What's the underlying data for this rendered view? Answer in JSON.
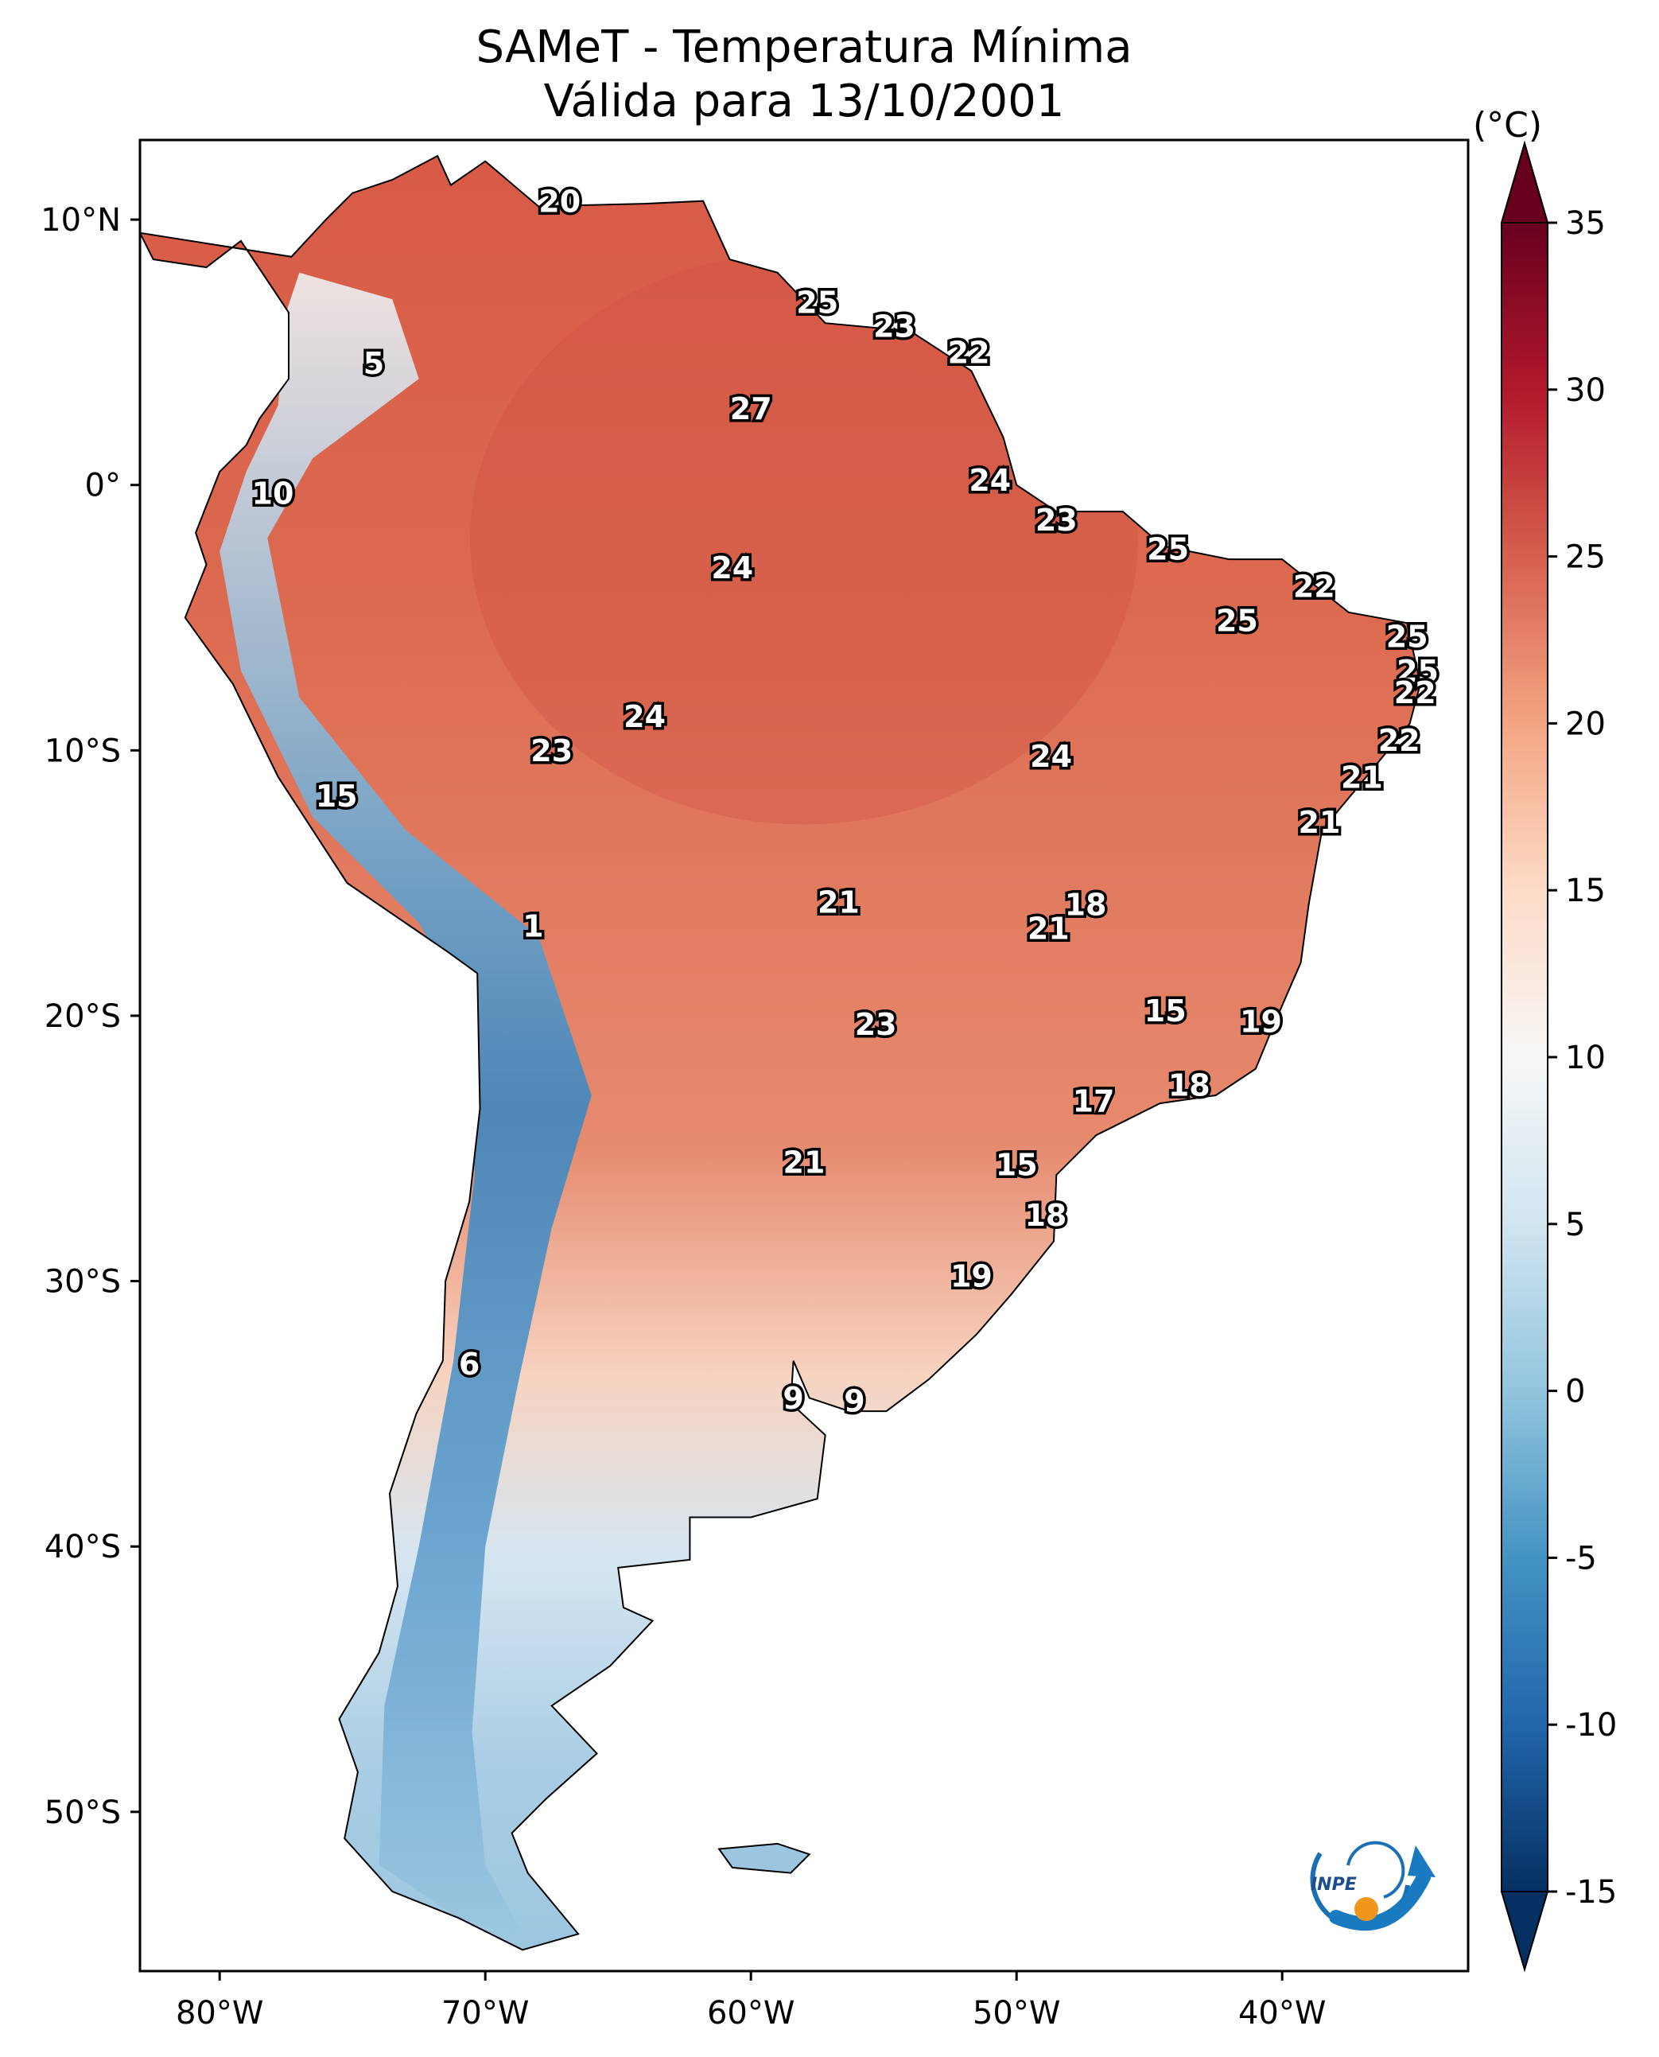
{
  "title": {
    "line1": "SAMeT - Temperatura Mínima",
    "line2": "Válida para 13/10/2001"
  },
  "map": {
    "lon_ticks": [
      "80°W",
      "70°W",
      "60°W",
      "50°W",
      "40°W"
    ],
    "lat_ticks": [
      "10°N",
      "0°",
      "10°S",
      "20°S",
      "30°S",
      "40°S",
      "50°S"
    ],
    "extent": {
      "lon": [
        -83,
        -33
      ],
      "lat": [
        -56,
        13
      ]
    },
    "labels": [
      {
        "text": "20",
        "lon": -67.2,
        "lat": 10.6
      },
      {
        "text": "25",
        "lon": -57.5,
        "lat": 6.8
      },
      {
        "text": "23",
        "lon": -54.6,
        "lat": 5.9
      },
      {
        "text": "22",
        "lon": -51.8,
        "lat": 4.9
      },
      {
        "text": "27",
        "lon": -60.0,
        "lat": 2.8
      },
      {
        "text": "5",
        "lon": -74.2,
        "lat": 4.5
      },
      {
        "text": "24",
        "lon": -51.0,
        "lat": 0.1
      },
      {
        "text": "10",
        "lon": -78.0,
        "lat": -0.4
      },
      {
        "text": "23",
        "lon": -48.5,
        "lat": -1.4
      },
      {
        "text": "25",
        "lon": -44.3,
        "lat": -2.5
      },
      {
        "text": "24",
        "lon": -60.7,
        "lat": -3.2
      },
      {
        "text": "22",
        "lon": -38.8,
        "lat": -3.9
      },
      {
        "text": "25",
        "lon": -41.7,
        "lat": -5.2
      },
      {
        "text": "25",
        "lon": -35.3,
        "lat": -5.8
      },
      {
        "text": "25",
        "lon": -34.9,
        "lat": -7.1
      },
      {
        "text": "22",
        "lon": -35.0,
        "lat": -7.9
      },
      {
        "text": "24",
        "lon": -64.0,
        "lat": -8.8
      },
      {
        "text": "22",
        "lon": -35.6,
        "lat": -9.7
      },
      {
        "text": "23",
        "lon": -67.5,
        "lat": -10.1
      },
      {
        "text": "24",
        "lon": -48.7,
        "lat": -10.3
      },
      {
        "text": "21",
        "lon": -37.0,
        "lat": -11.1
      },
      {
        "text": "15",
        "lon": -75.6,
        "lat": -11.8
      },
      {
        "text": "21",
        "lon": -38.6,
        "lat": -12.8
      },
      {
        "text": "21",
        "lon": -56.7,
        "lat": -15.8
      },
      {
        "text": "18",
        "lon": -47.4,
        "lat": -15.9
      },
      {
        "text": "21",
        "lon": -48.8,
        "lat": -16.8
      },
      {
        "text": "1",
        "lon": -68.2,
        "lat": -16.7
      },
      {
        "text": "15",
        "lon": -44.4,
        "lat": -19.9
      },
      {
        "text": "23",
        "lon": -55.3,
        "lat": -20.4
      },
      {
        "text": "19",
        "lon": -40.8,
        "lat": -20.3
      },
      {
        "text": "18",
        "lon": -43.5,
        "lat": -22.7
      },
      {
        "text": "17",
        "lon": -47.1,
        "lat": -23.3
      },
      {
        "text": "21",
        "lon": -58.0,
        "lat": -25.6
      },
      {
        "text": "15",
        "lon": -50.0,
        "lat": -25.7
      },
      {
        "text": "18",
        "lon": -48.9,
        "lat": -27.6
      },
      {
        "text": "19",
        "lon": -51.7,
        "lat": -29.9
      },
      {
        "text": "6",
        "lon": -70.6,
        "lat": -33.2
      },
      {
        "text": "9",
        "lon": -58.4,
        "lat": -34.5
      },
      {
        "text": "9",
        "lon": -56.1,
        "lat": -34.6
      }
    ]
  },
  "colorbar": {
    "unit": "(°C)",
    "ticks": [
      "35",
      "30",
      "25",
      "20",
      "15",
      "10",
      "5",
      "0",
      "-5",
      "-10",
      "-15"
    ],
    "min": -15,
    "max": 35,
    "stops": [
      "#053061",
      "#2166ac",
      "#4393c3",
      "#92c5de",
      "#d1e5f0",
      "#f7f7f7",
      "#fddbc7",
      "#f4a582",
      "#d6604d",
      "#b2182b",
      "#67001f"
    ]
  },
  "logo": {
    "text": "INPE"
  }
}
